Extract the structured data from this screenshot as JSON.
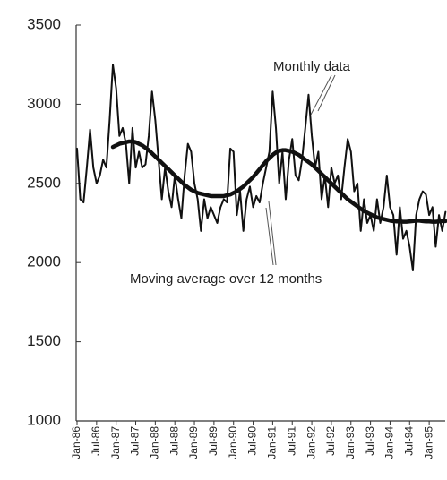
{
  "chart_data": {
    "type": "line",
    "categories": [
      "Jan-86",
      null,
      null,
      null,
      null,
      null,
      "Jul-86",
      null,
      null,
      null,
      null,
      null,
      "Jan-87",
      null,
      null,
      null,
      null,
      null,
      "Jul-87",
      null,
      null,
      null,
      null,
      null,
      "Jan-88",
      null,
      null,
      null,
      null,
      null,
      "Jul-88",
      null,
      null,
      null,
      null,
      null,
      "Jan-89",
      null,
      null,
      null,
      null,
      null,
      "Jul-89",
      null,
      null,
      null,
      null,
      null,
      "Jan-90",
      null,
      null,
      null,
      null,
      null,
      "Jul-90",
      null,
      null,
      null,
      null,
      null,
      "Jan-91",
      null,
      null,
      null,
      null,
      null,
      "Jul-91",
      null,
      null,
      null,
      null,
      null,
      "Jan-92",
      null,
      null,
      null,
      null,
      null,
      "Jul-92",
      null,
      null,
      null,
      null,
      null,
      "Jan-93",
      null,
      null,
      null,
      null,
      null,
      "Jul-93",
      null,
      null,
      null,
      null,
      null,
      "Jan-94",
      null,
      null,
      null,
      null,
      null,
      "Jul-94",
      null,
      null,
      null,
      null,
      null,
      "Jan-95",
      null,
      null,
      null,
      null,
      null
    ],
    "series": [
      {
        "name": "Monthly data",
        "color": "#111111",
        "values": [
          2720,
          2400,
          2380,
          2600,
          2840,
          2600,
          2500,
          2550,
          2650,
          2600,
          2900,
          3250,
          3100,
          2800,
          2850,
          2750,
          2500,
          2850,
          2600,
          2700,
          2600,
          2620,
          2800,
          3080,
          2900,
          2650,
          2400,
          2600,
          2450,
          2350,
          2550,
          2400,
          2280,
          2550,
          2750,
          2700,
          2500,
          2400,
          2200,
          2400,
          2280,
          2350,
          2300,
          2250,
          2350,
          2400,
          2380,
          2720,
          2700,
          2300,
          2450,
          2200,
          2400,
          2480,
          2350,
          2420,
          2380,
          2500,
          2600,
          2700,
          3080,
          2850,
          2500,
          2700,
          2400,
          2650,
          2780,
          2550,
          2520,
          2650,
          2850,
          3060,
          2800,
          2600,
          2700,
          2400,
          2550,
          2350,
          2600,
          2500,
          2550,
          2400,
          2600,
          2780,
          2700,
          2450,
          2500,
          2200,
          2400,
          2250,
          2300,
          2200,
          2400,
          2250,
          2350,
          2550,
          2350,
          2300,
          2050,
          2350,
          2150,
          2200,
          2100,
          1950,
          2300,
          2400,
          2450,
          2430,
          2300,
          2350,
          2100,
          2300,
          2200,
          2320
        ]
      },
      {
        "name": "Moving average over 12 months",
        "color": "#111111",
        "values": [
          null,
          null,
          null,
          null,
          null,
          null,
          null,
          null,
          null,
          null,
          null,
          2730,
          2740,
          2750,
          2755,
          2760,
          2765,
          2765,
          2760,
          2750,
          2740,
          2725,
          2710,
          2690,
          2670,
          2650,
          2630,
          2610,
          2590,
          2570,
          2550,
          2530,
          2510,
          2490,
          2475,
          2460,
          2450,
          2440,
          2435,
          2430,
          2425,
          2420,
          2420,
          2420,
          2420,
          2420,
          2425,
          2430,
          2440,
          2450,
          2465,
          2480,
          2500,
          2520,
          2540,
          2565,
          2590,
          2615,
          2640,
          2660,
          2680,
          2695,
          2705,
          2710,
          2710,
          2705,
          2700,
          2690,
          2680,
          2665,
          2650,
          2635,
          2620,
          2600,
          2580,
          2560,
          2540,
          2520,
          2500,
          2480,
          2460,
          2440,
          2420,
          2400,
          2385,
          2370,
          2355,
          2340,
          2325,
          2315,
          2305,
          2295,
          2285,
          2280,
          2275,
          2270,
          2265,
          2262,
          2260,
          2260,
          2258,
          2258,
          2260,
          2262,
          2265,
          2265,
          2262,
          2260,
          2260,
          2258,
          2258,
          2260,
          2262,
          2262
        ]
      }
    ],
    "ylim": [
      1000,
      3500
    ],
    "yticks": [
      1000,
      1500,
      2000,
      2500,
      3000,
      3500
    ],
    "grid": false
  }
}
